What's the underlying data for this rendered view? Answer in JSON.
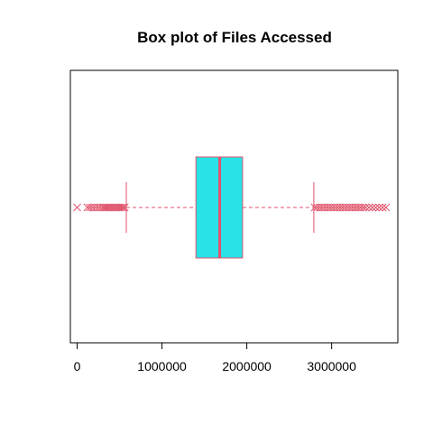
{
  "chart_data": {
    "type": "boxplot",
    "orientation": "horizontal",
    "title": "Box plot of Files Accessed",
    "xlabel": "",
    "ylabel": "",
    "xlim": [
      -80000,
      3780000
    ],
    "xticks": [
      0,
      1000000,
      2000000,
      3000000
    ],
    "xtick_labels": [
      "0",
      "1000000",
      "2000000",
      "3000000"
    ],
    "grid": false,
    "box": {
      "whisker_low": 580000,
      "q1": 1400000,
      "median": 1680000,
      "q3": 1950000,
      "whisker_high": 2790000
    },
    "outliers_low": [
      0,
      120000,
      150000,
      180000,
      210000,
      240000,
      270000,
      300000,
      320000,
      340000,
      360000,
      380000,
      400000,
      420000,
      440000,
      460000,
      480000,
      500000,
      520000,
      540000,
      560000
    ],
    "outliers_high": [
      2800000,
      2830000,
      2860000,
      2890000,
      2920000,
      2950000,
      2980000,
      3010000,
      3040000,
      3070000,
      3100000,
      3130000,
      3160000,
      3190000,
      3220000,
      3250000,
      3280000,
      3310000,
      3340000,
      3370000,
      3400000,
      3440000,
      3480000,
      3520000,
      3560000,
      3600000,
      3640000
    ],
    "colors": {
      "box_fill": "#27E3E8",
      "box_border": "#DF536B",
      "median": "#DF536B",
      "whisker": "#DF536B",
      "outlier": "#DF536B",
      "frame": "#000000"
    }
  }
}
